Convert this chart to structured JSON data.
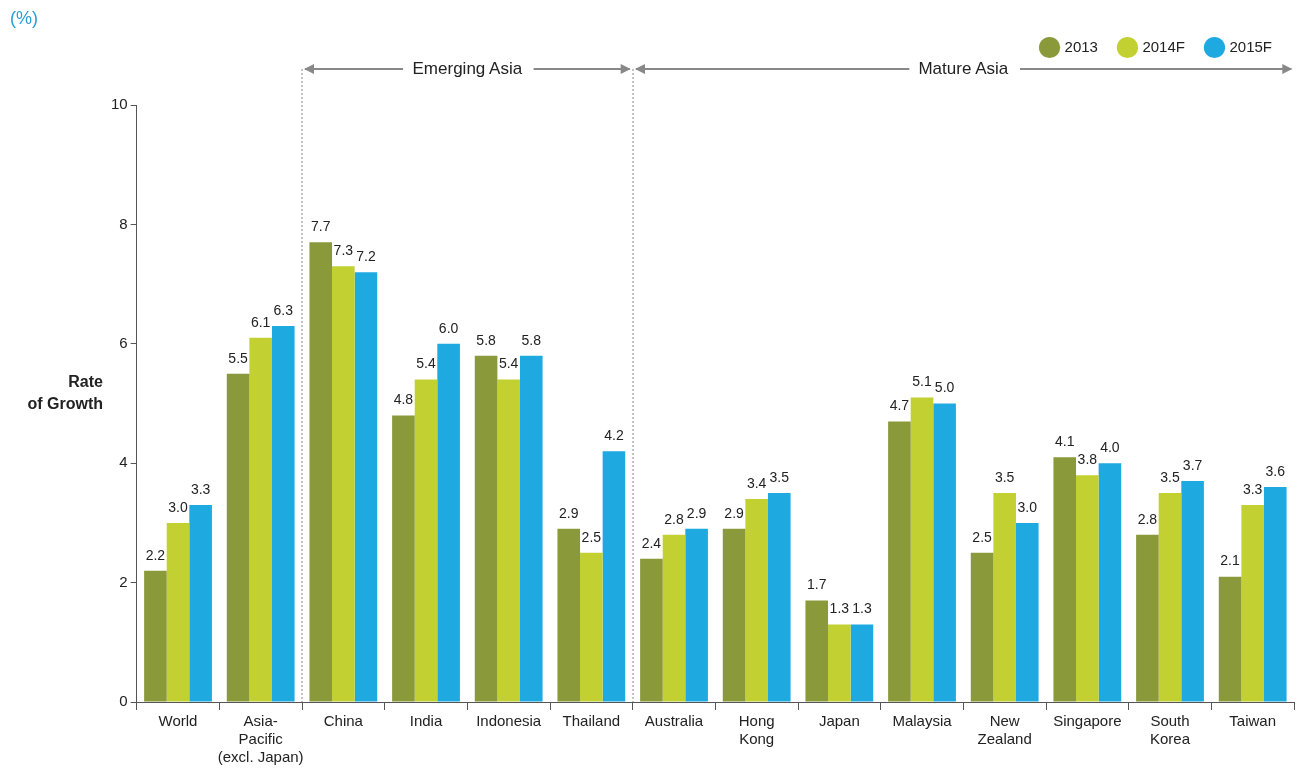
{
  "chart_data": {
    "type": "bar",
    "ylabel": "Rate\nof Growth",
    "annotations": [
      "(%)",
      "Emerging Asia",
      "Mature Asia"
    ],
    "categories": [
      "World",
      "Asia-\nPacific\n(excl. Japan)",
      "China",
      "India",
      "Indonesia",
      "Thailand",
      "Australia",
      "Hong\nKong",
      "Japan",
      "Malaysia",
      "New\nZealand",
      "Singapore",
      "South\nKorea",
      "Taiwan"
    ],
    "series": [
      {
        "name": "2013",
        "color": "#8a9a3b",
        "values": [
          2.2,
          5.5,
          7.7,
          4.8,
          5.8,
          2.9,
          2.4,
          2.9,
          1.7,
          4.7,
          2.5,
          4.1,
          2.8,
          2.1
        ],
        "value_labels": [
          "2.2",
          "5.5",
          "7.7",
          "4.8",
          "5.8",
          "2.9",
          "2.4",
          "2.9",
          "1.7",
          "4.7",
          "2.5",
          "4.1",
          "2.8",
          "2.1"
        ]
      },
      {
        "name": "2014F",
        "color": "#c2d032",
        "values": [
          3.0,
          6.1,
          7.3,
          5.4,
          5.4,
          2.5,
          2.8,
          3.4,
          1.3,
          5.1,
          3.5,
          3.8,
          3.5,
          3.3
        ],
        "value_labels": [
          "3.0",
          "6.1",
          "7.3",
          "5.4",
          "5.4",
          "2.5",
          "2.8",
          "3.4",
          "1.3",
          "5.1",
          "3.5",
          "3.8",
          "3.5",
          "3.3"
        ]
      },
      {
        "name": "2015F",
        "color": "#1ea9e1",
        "values": [
          3.3,
          6.3,
          7.2,
          6.0,
          5.8,
          4.2,
          2.9,
          3.5,
          1.3,
          5.0,
          3.0,
          4.0,
          3.7,
          3.6
        ],
        "value_labels": [
          "3.3",
          "6.3",
          "7.2",
          "6.0",
          "5.8",
          "4.2",
          "2.9",
          "3.5",
          "1.3",
          "5.0",
          "3.0",
          "4.0",
          "3.7",
          "3.6"
        ]
      }
    ],
    "ylim": [
      0,
      10
    ],
    "yticks": [
      0,
      2,
      4,
      6,
      8,
      10
    ],
    "grid": false,
    "legend": "top right"
  }
}
